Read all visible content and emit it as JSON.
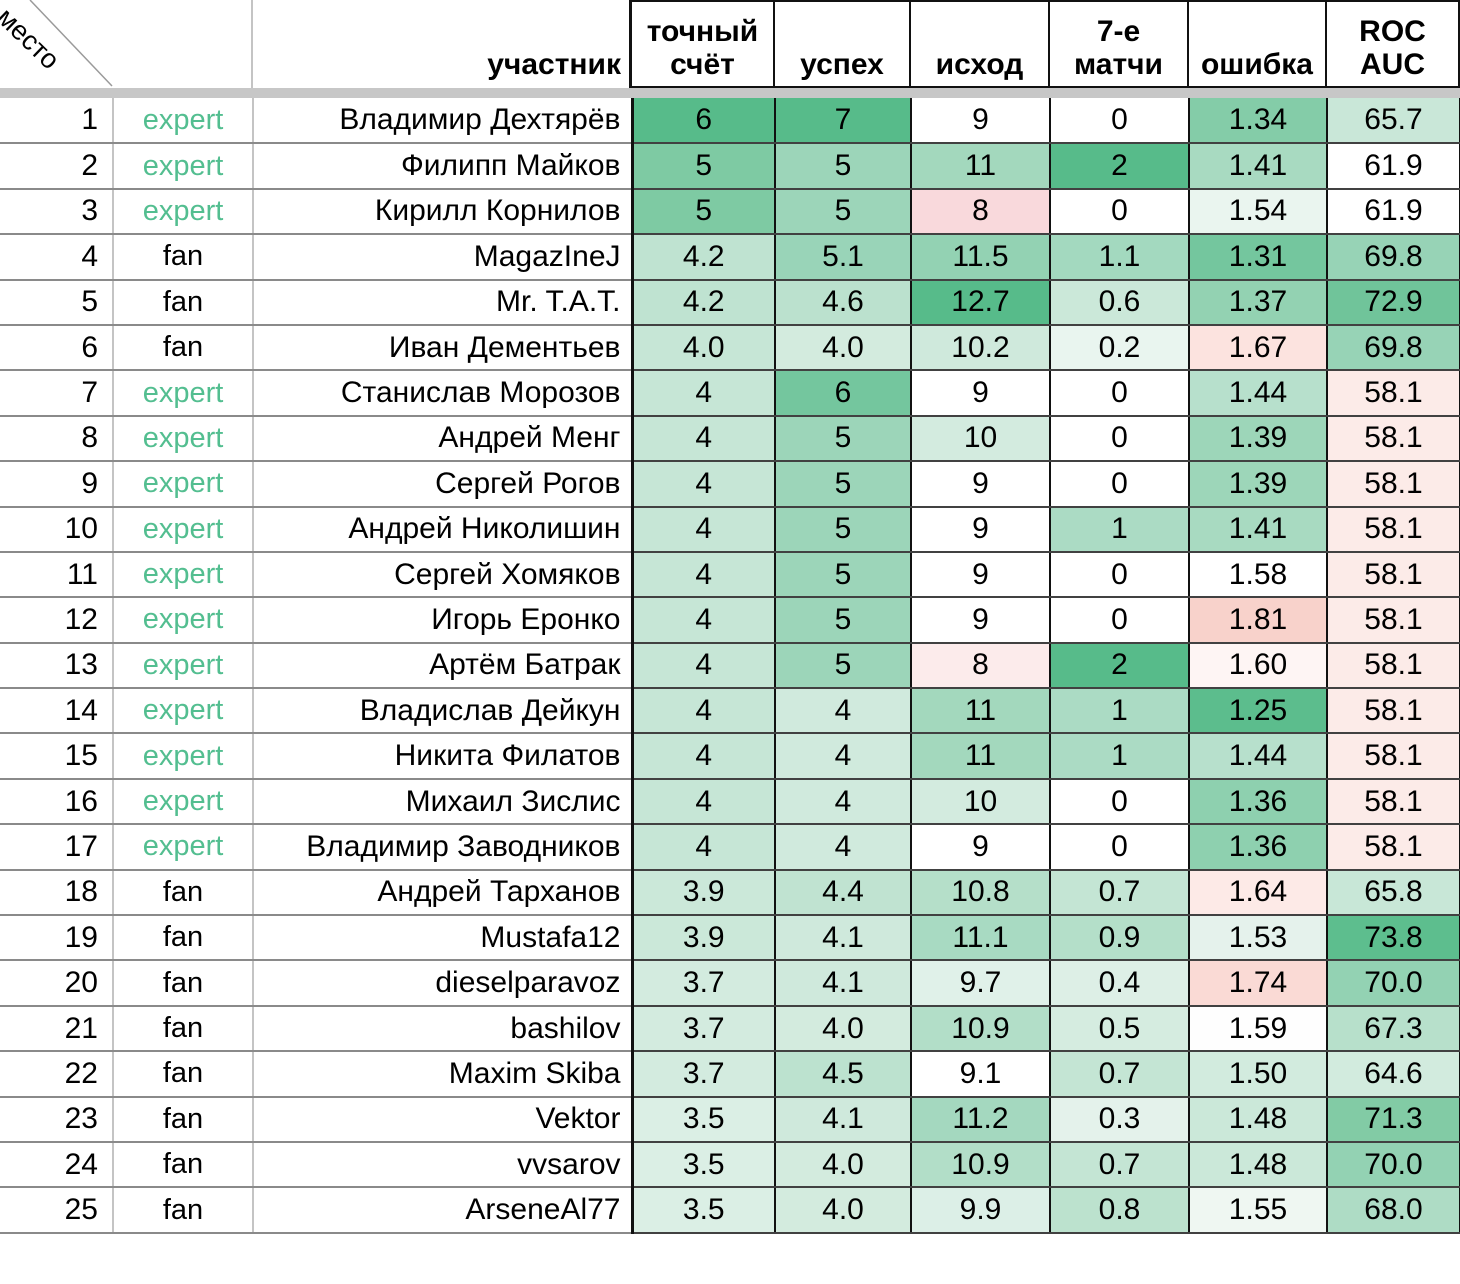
{
  "header": {
    "col_place": "место",
    "col_participant": "участник",
    "col_exact": "точный\nсчёт",
    "col_success": "успех",
    "col_outcome": "исход",
    "col_game7": "7-е\nматчи",
    "col_error": "ошибка",
    "col_roc": "ROC\nAUC"
  },
  "colors": {
    "expert_text": "#53be90",
    "strong_green": "#57bb8a",
    "strong_pink": "#f8d2cb",
    "divider_band": "#c7c7c7"
  },
  "rows": [
    {
      "place": "1",
      "type": "expert",
      "name": "Владимир Дехтярёв",
      "cells": [
        {
          "v": "6",
          "bg": "#57bb8a"
        },
        {
          "v": "7",
          "bg": "#57bb8a"
        },
        {
          "v": "9",
          "bg": "#ffffff"
        },
        {
          "v": "0",
          "bg": "#ffffff"
        },
        {
          "v": "1.34",
          "bg": "#84cca8"
        },
        {
          "v": "65.7",
          "bg": "#c9e7d8"
        }
      ]
    },
    {
      "place": "2",
      "type": "expert",
      "name": "Филипп Майков",
      "cells": [
        {
          "v": "5",
          "bg": "#7ecaa3"
        },
        {
          "v": "5",
          "bg": "#9cd5b9"
        },
        {
          "v": "11",
          "bg": "#a3d8bd"
        },
        {
          "v": "2",
          "bg": "#57bb8a"
        },
        {
          "v": "1.41",
          "bg": "#a8dac1"
        },
        {
          "v": "61.9",
          "bg": "#ffffff"
        }
      ]
    },
    {
      "place": "3",
      "type": "expert",
      "name": "Кирилл Корнилов",
      "cells": [
        {
          "v": "5",
          "bg": "#7ecaa3"
        },
        {
          "v": "5",
          "bg": "#9cd5b9"
        },
        {
          "v": "8",
          "bg": "#f9d9dc"
        },
        {
          "v": "0",
          "bg": "#ffffff"
        },
        {
          "v": "1.54",
          "bg": "#eaf5ef"
        },
        {
          "v": "61.9",
          "bg": "#ffffff"
        }
      ]
    },
    {
      "place": "4",
      "type": "fan",
      "name": "MagazIneJ",
      "cells": [
        {
          "v": "4.2",
          "bg": "#bfe3d1"
        },
        {
          "v": "5.1",
          "bg": "#99d4b8"
        },
        {
          "v": "11.5",
          "bg": "#93d2b3"
        },
        {
          "v": "1.1",
          "bg": "#a3d9bf"
        },
        {
          "v": "1.31",
          "bg": "#74c69e"
        },
        {
          "v": "69.8",
          "bg": "#97d3b6"
        }
      ]
    },
    {
      "place": "5",
      "type": "fan",
      "name": "Mr. T.A.T.",
      "cells": [
        {
          "v": "4.2",
          "bg": "#bfe3d1"
        },
        {
          "v": "4.6",
          "bg": "#bbe1ce"
        },
        {
          "v": "12.7",
          "bg": "#57bb8a"
        },
        {
          "v": "0.6",
          "bg": "#cbe8d9"
        },
        {
          "v": "1.37",
          "bg": "#93d2b2"
        },
        {
          "v": "72.9",
          "bg": "#70c49a"
        }
      ]
    },
    {
      "place": "6",
      "type": "fan",
      "name": "Иван Дементьев",
      "cells": [
        {
          "v": "4.0",
          "bg": "#c6e6d6"
        },
        {
          "v": "4.0",
          "bg": "#d3ebde"
        },
        {
          "v": "10.2",
          "bg": "#cfe9dc"
        },
        {
          "v": "0.2",
          "bg": "#e9f5ef"
        },
        {
          "v": "1.67",
          "bg": "#fce3df"
        },
        {
          "v": "69.8",
          "bg": "#97d3b6"
        }
      ]
    },
    {
      "place": "7",
      "type": "expert",
      "name": "Станислав Морозов",
      "cells": [
        {
          "v": "4",
          "bg": "#c6e6d6"
        },
        {
          "v": "6",
          "bg": "#74c69e"
        },
        {
          "v": "9",
          "bg": "#ffffff"
        },
        {
          "v": "0",
          "bg": "#ffffff"
        },
        {
          "v": "1.44",
          "bg": "#b7e0cc"
        },
        {
          "v": "58.1",
          "bg": "#fcebe8"
        }
      ]
    },
    {
      "place": "8",
      "type": "expert",
      "name": "Андрей Менг",
      "cells": [
        {
          "v": "4",
          "bg": "#c6e6d6"
        },
        {
          "v": "5",
          "bg": "#9cd5b9"
        },
        {
          "v": "10",
          "bg": "#d3ebdf"
        },
        {
          "v": "0",
          "bg": "#ffffff"
        },
        {
          "v": "1.39",
          "bg": "#9dd6b9"
        },
        {
          "v": "58.1",
          "bg": "#fcebe8"
        }
      ]
    },
    {
      "place": "9",
      "type": "expert",
      "name": "Сергей Рогов",
      "cells": [
        {
          "v": "4",
          "bg": "#c6e6d6"
        },
        {
          "v": "5",
          "bg": "#9cd5b9"
        },
        {
          "v": "9",
          "bg": "#ffffff"
        },
        {
          "v": "0",
          "bg": "#ffffff"
        },
        {
          "v": "1.39",
          "bg": "#9dd6b9"
        },
        {
          "v": "58.1",
          "bg": "#fcebe8"
        }
      ]
    },
    {
      "place": "10",
      "type": "expert",
      "name": "Андрей Николишин",
      "cells": [
        {
          "v": "4",
          "bg": "#c6e6d6"
        },
        {
          "v": "5",
          "bg": "#9cd5b9"
        },
        {
          "v": "9",
          "bg": "#ffffff"
        },
        {
          "v": "1",
          "bg": "#abdbc4"
        },
        {
          "v": "1.41",
          "bg": "#a8dac1"
        },
        {
          "v": "58.1",
          "bg": "#fcebe8"
        }
      ]
    },
    {
      "place": "11",
      "type": "expert",
      "name": "Сергей Хомяков",
      "cells": [
        {
          "v": "4",
          "bg": "#c6e6d6"
        },
        {
          "v": "5",
          "bg": "#9cd5b9"
        },
        {
          "v": "9",
          "bg": "#ffffff"
        },
        {
          "v": "0",
          "bg": "#ffffff"
        },
        {
          "v": "1.58",
          "bg": "#ffffff"
        },
        {
          "v": "58.1",
          "bg": "#fcebe8"
        }
      ]
    },
    {
      "place": "12",
      "type": "expert",
      "name": "Игорь Еронко",
      "cells": [
        {
          "v": "4",
          "bg": "#c6e6d6"
        },
        {
          "v": "5",
          "bg": "#9cd5b9"
        },
        {
          "v": "9",
          "bg": "#ffffff"
        },
        {
          "v": "0",
          "bg": "#ffffff"
        },
        {
          "v": "1.81",
          "bg": "#f8d2cb"
        },
        {
          "v": "58.1",
          "bg": "#fcebe8"
        }
      ]
    },
    {
      "place": "13",
      "type": "expert",
      "name": "Артём Батрак",
      "cells": [
        {
          "v": "4",
          "bg": "#c6e6d6"
        },
        {
          "v": "5",
          "bg": "#9cd5b9"
        },
        {
          "v": "8",
          "bg": "#fcebeb"
        },
        {
          "v": "2",
          "bg": "#57bb8a"
        },
        {
          "v": "1.60",
          "bg": "#fef5f4"
        },
        {
          "v": "58.1",
          "bg": "#fcebe8"
        }
      ]
    },
    {
      "place": "14",
      "type": "expert",
      "name": "Владислав Дейкун",
      "cells": [
        {
          "v": "4",
          "bg": "#c6e6d6"
        },
        {
          "v": "4",
          "bg": "#d0eadd"
        },
        {
          "v": "11",
          "bg": "#a3d8bd"
        },
        {
          "v": "1",
          "bg": "#abdbc4"
        },
        {
          "v": "1.25",
          "bg": "#5cbd8d"
        },
        {
          "v": "58.1",
          "bg": "#fcebe8"
        }
      ]
    },
    {
      "place": "15",
      "type": "expert",
      "name": "Никита Филатов",
      "cells": [
        {
          "v": "4",
          "bg": "#c6e6d6"
        },
        {
          "v": "4",
          "bg": "#d0eadd"
        },
        {
          "v": "11",
          "bg": "#a3d8bd"
        },
        {
          "v": "1",
          "bg": "#abdbc4"
        },
        {
          "v": "1.44",
          "bg": "#b7e0cc"
        },
        {
          "v": "58.1",
          "bg": "#fcebe8"
        }
      ]
    },
    {
      "place": "16",
      "type": "expert",
      "name": "Михаил Зислис",
      "cells": [
        {
          "v": "4",
          "bg": "#c6e6d6"
        },
        {
          "v": "4",
          "bg": "#d0eadd"
        },
        {
          "v": "10",
          "bg": "#d3ebdf"
        },
        {
          "v": "0",
          "bg": "#ffffff"
        },
        {
          "v": "1.36",
          "bg": "#8ed0af"
        },
        {
          "v": "58.1",
          "bg": "#fcebe8"
        }
      ]
    },
    {
      "place": "17",
      "type": "expert",
      "name": "Владимир Заводников",
      "cells": [
        {
          "v": "4",
          "bg": "#c6e6d6"
        },
        {
          "v": "4",
          "bg": "#d0eadd"
        },
        {
          "v": "9",
          "bg": "#ffffff"
        },
        {
          "v": "0",
          "bg": "#ffffff"
        },
        {
          "v": "1.36",
          "bg": "#8ed0af"
        },
        {
          "v": "58.1",
          "bg": "#fcebe8"
        }
      ]
    },
    {
      "place": "18",
      "type": "fan",
      "name": "Андрей Тарханов",
      "cells": [
        {
          "v": "3.9",
          "bg": "#cbe8d9"
        },
        {
          "v": "4.4",
          "bg": "#c0e3d1"
        },
        {
          "v": "10.8",
          "bg": "#b5dfc9"
        },
        {
          "v": "0.7",
          "bg": "#c4e5d4"
        },
        {
          "v": "1.64",
          "bg": "#fdeae7"
        },
        {
          "v": "65.8",
          "bg": "#c8e7d7"
        }
      ]
    },
    {
      "place": "19",
      "type": "fan",
      "name": "Mustafa12",
      "cells": [
        {
          "v": "3.9",
          "bg": "#cbe8d9"
        },
        {
          "v": "4.1",
          "bg": "#cfe9dc"
        },
        {
          "v": "11.1",
          "bg": "#a8dac2"
        },
        {
          "v": "0.9",
          "bg": "#b4dfc9"
        },
        {
          "v": "1.53",
          "bg": "#e5f2ec"
        },
        {
          "v": "73.8",
          "bg": "#5dbe8e"
        }
      ]
    },
    {
      "place": "20",
      "type": "fan",
      "name": "dieselparavoz",
      "cells": [
        {
          "v": "3.7",
          "bg": "#d3ebdf"
        },
        {
          "v": "4.1",
          "bg": "#cfe9dc"
        },
        {
          "v": "9.7",
          "bg": "#e0f1e9"
        },
        {
          "v": "0.4",
          "bg": "#ddefe6"
        },
        {
          "v": "1.74",
          "bg": "#fadad5"
        },
        {
          "v": "70.0",
          "bg": "#93d2b3"
        }
      ]
    },
    {
      "place": "21",
      "type": "fan",
      "name": "bashilov",
      "cells": [
        {
          "v": "3.7",
          "bg": "#d3ebdf"
        },
        {
          "v": "4.0",
          "bg": "#d3ebde"
        },
        {
          "v": "10.9",
          "bg": "#b2dec8"
        },
        {
          "v": "0.5",
          "bg": "#d5ece0"
        },
        {
          "v": "1.59",
          "bg": "#fefefe"
        },
        {
          "v": "67.3",
          "bg": "#b7e0cb"
        }
      ]
    },
    {
      "place": "22",
      "type": "fan",
      "name": "Maxim Skiba",
      "cells": [
        {
          "v": "3.7",
          "bg": "#d3ebdf"
        },
        {
          "v": "4.5",
          "bg": "#bce2cf"
        },
        {
          "v": "9.1",
          "bg": "#ffffff"
        },
        {
          "v": "0.7",
          "bg": "#c4e5d4"
        },
        {
          "v": "1.50",
          "bg": "#d2ebde"
        },
        {
          "v": "64.6",
          "bg": "#d2ebde"
        }
      ]
    },
    {
      "place": "23",
      "type": "fan",
      "name": "Vektor",
      "cells": [
        {
          "v": "3.5",
          "bg": "#dbefe5"
        },
        {
          "v": "4.1",
          "bg": "#cfe9dc"
        },
        {
          "v": "11.2",
          "bg": "#a4d8bf"
        },
        {
          "v": "0.3",
          "bg": "#e4f2eb"
        },
        {
          "v": "1.48",
          "bg": "#cbe8d9"
        },
        {
          "v": "71.3",
          "bg": "#82cba5"
        }
      ]
    },
    {
      "place": "24",
      "type": "fan",
      "name": "vvsarov",
      "cells": [
        {
          "v": "3.5",
          "bg": "#dbefe5"
        },
        {
          "v": "4.0",
          "bg": "#d3ebde"
        },
        {
          "v": "10.9",
          "bg": "#b2dec8"
        },
        {
          "v": "0.7",
          "bg": "#c4e5d4"
        },
        {
          "v": "1.48",
          "bg": "#cbe8d9"
        },
        {
          "v": "70.0",
          "bg": "#93d2b3"
        }
      ]
    },
    {
      "place": "25",
      "type": "fan",
      "name": "ArseneAl77",
      "cells": [
        {
          "v": "3.5",
          "bg": "#dbefe5"
        },
        {
          "v": "4.0",
          "bg": "#d3ebde"
        },
        {
          "v": "9.9",
          "bg": "#dcefe7"
        },
        {
          "v": "0.8",
          "bg": "#bce2ce"
        },
        {
          "v": "1.55",
          "bg": "#eff7f2"
        },
        {
          "v": "68.0",
          "bg": "#aedcc5"
        }
      ]
    }
  ]
}
